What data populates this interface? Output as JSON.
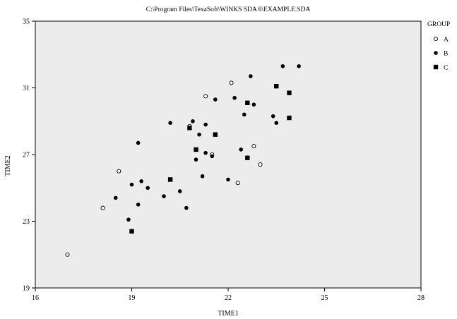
{
  "chart_data": {
    "type": "scatter",
    "title": "C:\\Program Files\\TexaSoft\\WINKS SDA 6\\EXAMPLE.SDA",
    "xlabel": "TIME1",
    "ylabel": "TIME2",
    "xlim": [
      16,
      28
    ],
    "ylim": [
      19,
      35
    ],
    "xticks": [
      16,
      19,
      22,
      25,
      28
    ],
    "yticks": [
      19,
      23,
      27,
      31,
      35
    ],
    "grid": false,
    "background": "#ececec",
    "legend": {
      "title": "GROUP",
      "position": "top-right",
      "entries": [
        {
          "label": "A",
          "marker": "open-circle"
        },
        {
          "label": "B",
          "marker": "filled-circle"
        },
        {
          "label": "C",
          "marker": "filled-square"
        }
      ]
    },
    "series": [
      {
        "name": "A",
        "marker": "open-circle",
        "points": [
          [
            17.0,
            21.0
          ],
          [
            18.1,
            23.8
          ],
          [
            18.6,
            26.0
          ],
          [
            20.8,
            28.7
          ],
          [
            21.3,
            30.5
          ],
          [
            21.5,
            27.0
          ],
          [
            22.1,
            31.3
          ],
          [
            22.3,
            25.3
          ],
          [
            22.8,
            27.5
          ],
          [
            23.0,
            26.4
          ]
        ]
      },
      {
        "name": "B",
        "marker": "filled-circle",
        "points": [
          [
            18.5,
            24.4
          ],
          [
            18.9,
            23.1
          ],
          [
            19.0,
            25.2
          ],
          [
            19.2,
            24.0
          ],
          [
            19.2,
            27.7
          ],
          [
            19.3,
            25.4
          ],
          [
            19.5,
            25.0
          ],
          [
            20.0,
            24.5
          ],
          [
            20.2,
            28.9
          ],
          [
            20.5,
            24.8
          ],
          [
            20.7,
            23.8
          ],
          [
            20.9,
            29.0
          ],
          [
            21.0,
            26.7
          ],
          [
            21.1,
            28.2
          ],
          [
            21.2,
            25.7
          ],
          [
            21.3,
            27.1
          ],
          [
            21.3,
            28.8
          ],
          [
            21.5,
            26.9
          ],
          [
            21.6,
            30.3
          ],
          [
            22.0,
            25.5
          ],
          [
            22.2,
            30.4
          ],
          [
            22.4,
            27.3
          ],
          [
            22.5,
            29.4
          ],
          [
            22.7,
            31.7
          ],
          [
            22.8,
            30.0
          ],
          [
            23.4,
            29.3
          ],
          [
            23.5,
            28.9
          ],
          [
            23.7,
            32.3
          ],
          [
            24.2,
            32.3
          ]
        ]
      },
      {
        "name": "C",
        "marker": "filled-square",
        "points": [
          [
            19.0,
            22.4
          ],
          [
            20.2,
            25.5
          ],
          [
            20.8,
            28.6
          ],
          [
            21.0,
            27.3
          ],
          [
            21.6,
            28.2
          ],
          [
            22.6,
            30.1
          ],
          [
            22.6,
            26.8
          ],
          [
            23.5,
            31.1
          ],
          [
            23.9,
            30.7
          ],
          [
            23.9,
            29.2
          ]
        ]
      }
    ]
  }
}
